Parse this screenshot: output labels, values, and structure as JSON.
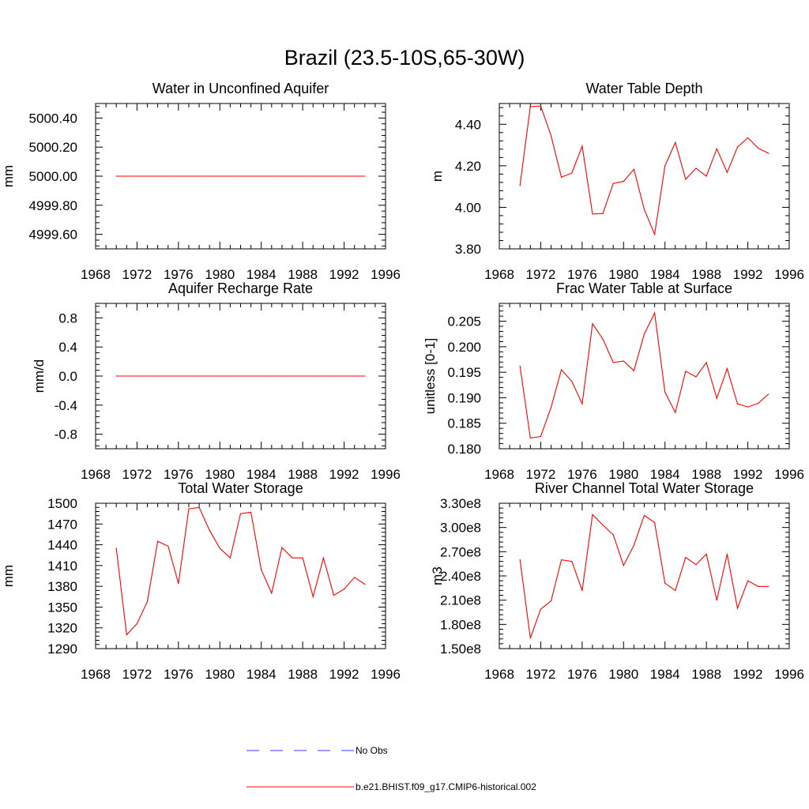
{
  "figure": {
    "title": "Brazil (23.5-10S,65-30W)"
  },
  "legend": {
    "items": [
      {
        "label": "No Obs",
        "color": "#3b3bff",
        "style": "dashed"
      },
      {
        "label": "b.e21.BHIST.f09_g17.CMIP6-historical.002",
        "color": "#ff0000",
        "style": "solid"
      }
    ]
  },
  "chart_data": [
    {
      "type": "line",
      "title": "Water in Unconfined Aquifer",
      "ylabel": "mm",
      "xlim": [
        1968,
        1996
      ],
      "ylim": [
        4999.5,
        5000.5
      ],
      "x_ticks": [
        "1968",
        "1972",
        "1976",
        "1980",
        "1984",
        "1988",
        "1992",
        "1996"
      ],
      "y_ticks": [
        4999.6,
        4999.8,
        5000.0,
        5000.2,
        5000.4
      ],
      "y_tick_labels": [
        "4999.60",
        "4999.80",
        "5000.00",
        "5000.20",
        "5000.40"
      ],
      "series": [
        {
          "color": "#ff0000",
          "x": [
            1970,
            1971,
            1972,
            1973,
            1974,
            1975,
            1976,
            1977,
            1978,
            1979,
            1980,
            1981,
            1982,
            1983,
            1984,
            1985,
            1986,
            1987,
            1988,
            1989,
            1990,
            1991,
            1992,
            1993,
            1994
          ],
          "values": [
            5000,
            5000,
            5000,
            5000,
            5000,
            5000,
            5000,
            5000,
            5000,
            5000,
            5000,
            5000,
            5000,
            5000,
            5000,
            5000,
            5000,
            5000,
            5000,
            5000,
            5000,
            5000,
            5000,
            5000,
            5000
          ]
        }
      ]
    },
    {
      "type": "line",
      "title": "Water Table Depth",
      "ylabel": "m",
      "xlim": [
        1968,
        1996
      ],
      "ylim": [
        3.8,
        4.5
      ],
      "x_ticks": [
        "1968",
        "1972",
        "1976",
        "1980",
        "1984",
        "1988",
        "1992",
        "1996"
      ],
      "y_ticks": [
        3.8,
        4.0,
        4.2,
        4.4
      ],
      "y_tick_labels": [
        "3.80",
        "4.00",
        "4.20",
        "4.40"
      ],
      "series": [
        {
          "color": "#ff0000",
          "x": [
            1970,
            1971,
            1972,
            1973,
            1974,
            1975,
            1976,
            1977,
            1978,
            1979,
            1980,
            1981,
            1982,
            1983,
            1984,
            1985,
            1986,
            1987,
            1988,
            1989,
            1990,
            1991,
            1992,
            1993,
            1994
          ],
          "values": [
            4.105,
            4.485,
            4.488,
            4.345,
            4.145,
            4.165,
            4.295,
            3.968,
            3.97,
            4.115,
            4.125,
            4.183,
            3.99,
            3.87,
            4.2,
            4.312,
            4.135,
            4.188,
            4.15,
            4.282,
            4.168,
            4.29,
            4.335,
            4.285,
            4.26
          ]
        }
      ]
    },
    {
      "type": "line",
      "title": "Aquifer Recharge Rate",
      "ylabel": "mm/d",
      "xlim": [
        1968,
        1996
      ],
      "ylim": [
        -1.0,
        1.0
      ],
      "x_ticks": [
        "1968",
        "1972",
        "1976",
        "1980",
        "1984",
        "1988",
        "1992",
        "1996"
      ],
      "y_ticks": [
        -0.8,
        -0.4,
        0.0,
        0.4,
        0.8
      ],
      "y_tick_labels": [
        "-0.8",
        "-0.4",
        "0.0",
        "0.4",
        "0.8"
      ],
      "series": [
        {
          "color": "#ff0000",
          "x": [
            1970,
            1971,
            1972,
            1973,
            1974,
            1975,
            1976,
            1977,
            1978,
            1979,
            1980,
            1981,
            1982,
            1983,
            1984,
            1985,
            1986,
            1987,
            1988,
            1989,
            1990,
            1991,
            1992,
            1993,
            1994
          ],
          "values": [
            0,
            0,
            0,
            0,
            0,
            0,
            0,
            0,
            0,
            0,
            0,
            0,
            0,
            0,
            0,
            0,
            0,
            0,
            0,
            0,
            0,
            0,
            0,
            0,
            0
          ]
        }
      ]
    },
    {
      "type": "line",
      "title": "Frac Water Table at Surface",
      "ylabel": "unitless [0-1]",
      "xlim": [
        1968,
        1996
      ],
      "ylim": [
        0.18,
        0.2085
      ],
      "x_ticks": [
        "1968",
        "1972",
        "1976",
        "1980",
        "1984",
        "1988",
        "1992",
        "1996"
      ],
      "y_ticks": [
        0.18,
        0.185,
        0.19,
        0.195,
        0.2,
        0.205
      ],
      "y_tick_labels": [
        "0.180",
        "0.185",
        "0.190",
        "0.195",
        "0.200",
        "0.205"
      ],
      "series": [
        {
          "color": "#ff0000",
          "x": [
            1970,
            1971,
            1972,
            1973,
            1974,
            1975,
            1976,
            1977,
            1978,
            1979,
            1980,
            1981,
            1982,
            1983,
            1984,
            1985,
            1986,
            1987,
            1988,
            1989,
            1990,
            1991,
            1992,
            1993,
            1994
          ],
          "values": [
            0.1962,
            0.1821,
            0.1824,
            0.1881,
            0.1955,
            0.1932,
            0.1888,
            0.2045,
            0.2015,
            0.1969,
            0.1972,
            0.1953,
            0.2025,
            0.2066,
            0.1911,
            0.1871,
            0.1952,
            0.1941,
            0.1969,
            0.1899,
            0.1957,
            0.1888,
            0.1882,
            0.1889,
            0.1907
          ]
        }
      ]
    },
    {
      "type": "line",
      "title": "Total Water Storage",
      "ylabel": "mm",
      "xlim": [
        1968,
        1996
      ],
      "ylim": [
        1290,
        1500
      ],
      "x_ticks": [
        "1968",
        "1972",
        "1976",
        "1980",
        "1984",
        "1988",
        "1992",
        "1996"
      ],
      "y_ticks": [
        1290,
        1320,
        1350,
        1380,
        1410,
        1440,
        1470,
        1500
      ],
      "y_tick_labels": [
        "1290",
        "1320",
        "1350",
        "1380",
        "1410",
        "1440",
        "1470",
        "1500"
      ],
      "series": [
        {
          "color": "#ff0000",
          "x": [
            1970,
            1971,
            1972,
            1973,
            1974,
            1975,
            1976,
            1977,
            1978,
            1979,
            1980,
            1981,
            1982,
            1983,
            1984,
            1985,
            1986,
            1987,
            1988,
            1989,
            1990,
            1991,
            1992,
            1993,
            1994
          ],
          "values": [
            1435,
            1310,
            1326,
            1358,
            1445,
            1438,
            1384,
            1492,
            1494,
            1461,
            1435,
            1421,
            1485,
            1487,
            1404,
            1370,
            1436,
            1421,
            1421,
            1365,
            1421,
            1367,
            1376,
            1393,
            1383
          ]
        }
      ]
    },
    {
      "type": "line",
      "title": "River Channel Total Water Storage",
      "ylabel": "m3",
      "xlim": [
        1968,
        1996
      ],
      "ylim": [
        150000000.0,
        330000000.0
      ],
      "x_ticks": [
        "1968",
        "1972",
        "1976",
        "1980",
        "1984",
        "1988",
        "1992",
        "1996"
      ],
      "y_ticks": [
        150000000.0,
        180000000.0,
        210000000.0,
        240000000.0,
        270000000.0,
        300000000.0,
        330000000.0
      ],
      "y_tick_labels": [
        "1.50e8",
        "1.80e8",
        "2.10e8",
        "2.40e8",
        "2.70e8",
        "3.00e8",
        "3.30e8"
      ],
      "series": [
        {
          "color": "#ff0000",
          "x": [
            1970,
            1971,
            1972,
            1973,
            1974,
            1975,
            1976,
            1977,
            1978,
            1979,
            1980,
            1981,
            1982,
            1983,
            1984,
            1985,
            1986,
            1987,
            1988,
            1989,
            1990,
            1991,
            1992,
            1993,
            1994
          ],
          "values": [
            260000000.0,
            163000000.0,
            199000000.0,
            209000000.0,
            260000000.0,
            258000000.0,
            222000000.0,
            316000000.0,
            303000000.0,
            291000000.0,
            253000000.0,
            278000000.0,
            315000000.0,
            306000000.0,
            231000000.0,
            222000000.0,
            263000000.0,
            254000000.0,
            267000000.0,
            210000000.0,
            267000000.0,
            200000000.0,
            234000000.0,
            227000000.0,
            227000000.0
          ]
        }
      ]
    }
  ]
}
